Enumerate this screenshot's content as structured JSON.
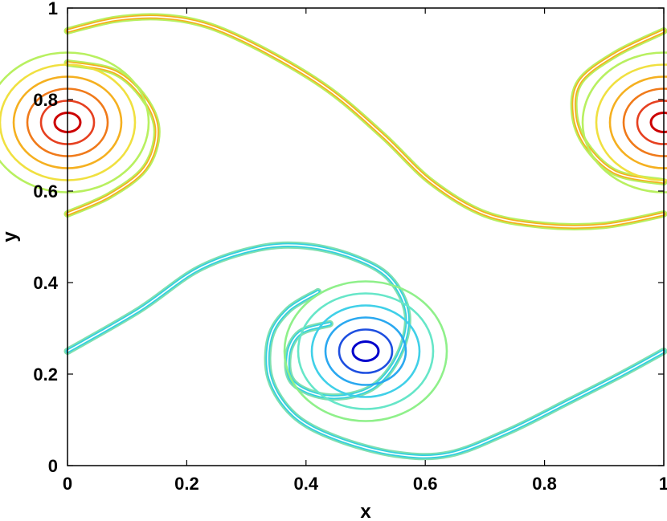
{
  "chart_data": {
    "type": "contour",
    "title": "",
    "xlabel": "x",
    "ylabel": "y",
    "xlim": [
      0,
      1
    ],
    "ylim": [
      0,
      1
    ],
    "xticks": [
      "0",
      "0.2",
      "0.4",
      "0.6",
      "0.8",
      "1"
    ],
    "yticks": [
      "0",
      "0.2",
      "0.4",
      "0.6",
      "0.8",
      "1"
    ],
    "grid": false,
    "legend": "none",
    "colormap": "jet",
    "features": [
      {
        "kind": "vortex",
        "center": [
          0.5,
          0.25
        ],
        "colors": [
          "#0000cc",
          "#1e4fe0",
          "#2aa8f0",
          "#40d0e8",
          "#66e6c8",
          "#8ff08a"
        ]
      },
      {
        "kind": "vortex",
        "center": [
          1.0,
          0.75
        ],
        "colors": [
          "#cc0000",
          "#e64020",
          "#f07a1a",
          "#f5b020",
          "#f0e040",
          "#b8f060"
        ]
      },
      {
        "kind": "vortex",
        "center": [
          0.0,
          0.75
        ],
        "colors": [
          "#cc0000",
          "#e64020",
          "#f07a1a",
          "#f5b020",
          "#f0e040",
          "#b8f060"
        ]
      }
    ],
    "filaments": [
      {
        "name": "lower",
        "colors": [
          "#7fe0b0",
          "#34cfe0",
          "#ffffff"
        ],
        "points": [
          [
            0.0,
            0.25
          ],
          [
            0.12,
            0.34
          ],
          [
            0.22,
            0.43
          ],
          [
            0.32,
            0.475
          ],
          [
            0.4,
            0.48
          ],
          [
            0.48,
            0.455
          ],
          [
            0.54,
            0.41
          ],
          [
            0.57,
            0.33
          ],
          [
            0.555,
            0.24
          ],
          [
            0.51,
            0.17
          ],
          [
            0.44,
            0.15
          ],
          [
            0.38,
            0.18
          ],
          [
            0.37,
            0.24
          ],
          [
            0.39,
            0.29
          ],
          [
            0.44,
            0.31
          ]
        ]
      },
      {
        "name": "lower-tail",
        "colors": [
          "#7fe0b0",
          "#34cfe0",
          "#ffffff"
        ],
        "points": [
          [
            0.42,
            0.38
          ],
          [
            0.37,
            0.34
          ],
          [
            0.34,
            0.28
          ],
          [
            0.34,
            0.19
          ],
          [
            0.38,
            0.11
          ],
          [
            0.45,
            0.06
          ],
          [
            0.55,
            0.025
          ],
          [
            0.64,
            0.025
          ],
          [
            0.74,
            0.075
          ],
          [
            0.84,
            0.14
          ],
          [
            0.93,
            0.2
          ],
          [
            1.0,
            0.25
          ]
        ]
      },
      {
        "name": "upper",
        "colors": [
          "#b8f060",
          "#f5b020",
          "#ffffff"
        ],
        "points": [
          [
            0.0,
            0.95
          ],
          [
            0.08,
            0.975
          ],
          [
            0.16,
            0.98
          ],
          [
            0.24,
            0.96
          ],
          [
            0.34,
            0.9
          ],
          [
            0.44,
            0.82
          ],
          [
            0.53,
            0.72
          ],
          [
            0.61,
            0.62
          ],
          [
            0.7,
            0.55
          ],
          [
            0.8,
            0.525
          ],
          [
            0.9,
            0.525
          ],
          [
            1.0,
            0.55
          ]
        ]
      },
      {
        "name": "upper-tail-right",
        "colors": [
          "#b8f060",
          "#f5b020",
          "#ffffff"
        ],
        "points": [
          [
            1.0,
            0.95
          ],
          [
            0.92,
            0.9
          ],
          [
            0.86,
            0.84
          ],
          [
            0.85,
            0.77
          ],
          [
            0.87,
            0.7
          ],
          [
            0.92,
            0.64
          ],
          [
            1.0,
            0.62
          ]
        ]
      },
      {
        "name": "upper-tail-left",
        "colors": [
          "#b8f060",
          "#f5b020",
          "#ffffff"
        ],
        "points": [
          [
            0.0,
            0.55
          ],
          [
            0.07,
            0.59
          ],
          [
            0.13,
            0.65
          ],
          [
            0.15,
            0.73
          ],
          [
            0.13,
            0.8
          ],
          [
            0.08,
            0.86
          ],
          [
            0.0,
            0.88
          ]
        ]
      }
    ]
  }
}
